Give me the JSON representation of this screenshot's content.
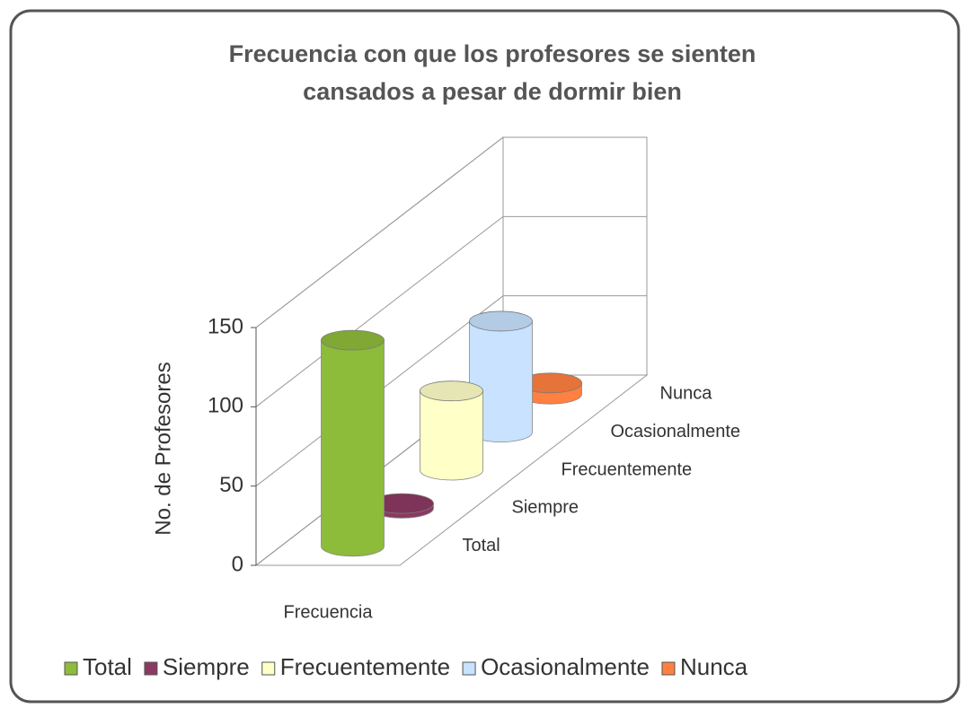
{
  "chart_data": {
    "type": "bar3d",
    "title": "Frecuencia con que los profesores  se sienten cansados a pesar de dormir bien",
    "y_label": "No. de Profesores",
    "categories": [
      "Frecuencia"
    ],
    "series": [
      {
        "name": "Total",
        "color": "#8dbb3a",
        "values": [
          130
        ]
      },
      {
        "name": "Siempre",
        "color": "#8b3a62",
        "values": [
          3
        ]
      },
      {
        "name": "Frecuentemente",
        "color": "#ffffc8",
        "values": [
          50
        ]
      },
      {
        "name": "Ocasionalmente",
        "color": "#c8e2ff",
        "values": [
          70
        ]
      },
      {
        "name": "Nunca",
        "color": "#ff8040",
        "values": [
          7
        ]
      }
    ],
    "ylim": [
      0,
      150
    ],
    "yticks": [
      0,
      50,
      100,
      150
    ],
    "grid": true,
    "legend": "bottom"
  }
}
